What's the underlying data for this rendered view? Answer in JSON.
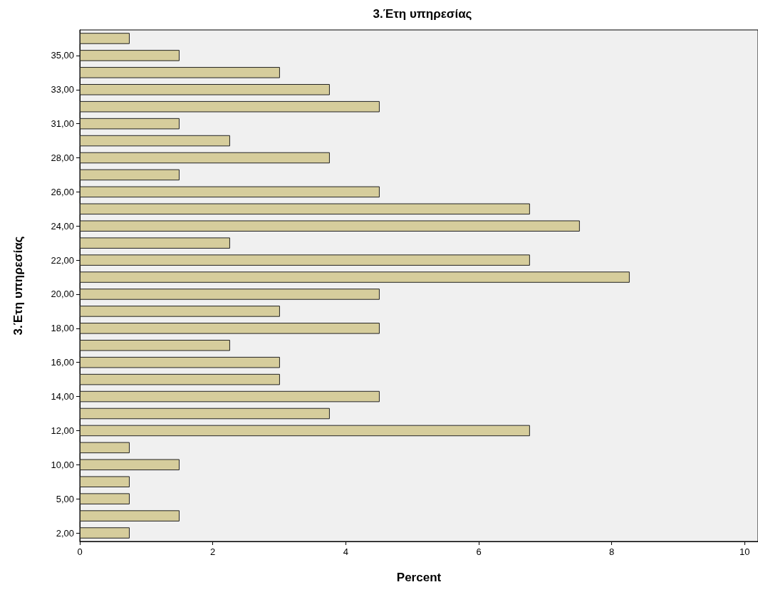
{
  "chart_data": {
    "type": "bar",
    "orientation": "horizontal",
    "title": "3.Έτη υπηρεσίας",
    "xlabel": "Percent",
    "ylabel": "3.Έτη υπηρεσίας",
    "categories": [
      null,
      "35,00",
      null,
      "33,00",
      null,
      "31,00",
      null,
      "28,00",
      null,
      "26,00",
      null,
      "24,00",
      null,
      "22,00",
      null,
      "20,00",
      null,
      "18,00",
      null,
      "16,00",
      null,
      "14,00",
      null,
      "12,00",
      null,
      "10,00",
      null,
      "5,00",
      null,
      "2,00"
    ],
    "values": [
      0.75,
      1.5,
      3.01,
      3.76,
      4.51,
      1.5,
      2.26,
      3.76,
      1.5,
      4.51,
      6.77,
      7.52,
      2.26,
      6.77,
      8.27,
      4.51,
      3.01,
      4.51,
      2.26,
      3.01,
      3.01,
      4.51,
      3.76,
      6.77,
      0.75,
      1.5,
      0.75,
      0.75,
      1.5,
      0.75
    ],
    "color": "#d6cd9c",
    "xlim": [
      0,
      10.2
    ],
    "xticks": [
      0,
      2,
      4,
      6,
      8,
      10
    ],
    "grid": false
  }
}
